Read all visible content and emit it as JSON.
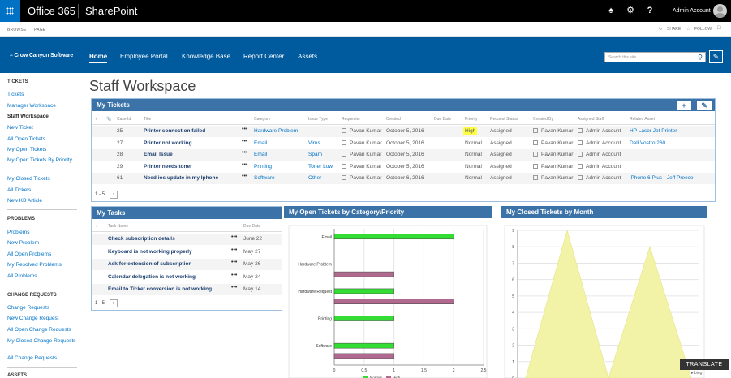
{
  "suite": {
    "office": "Office 365",
    "app": "SharePoint",
    "user": "Admin Account"
  },
  "ribbon": {
    "tabs": [
      "BROWSE",
      "PAGE"
    ],
    "share": "SHARE",
    "follow": "FOLLOW"
  },
  "nav": {
    "logo": "Crow Canyon Software",
    "links": [
      "Home",
      "Employee Portal",
      "Knowledge Base",
      "Report Center",
      "Assets"
    ],
    "search_placeholder": "Search this site"
  },
  "leftnav": {
    "tickets_head": "TICKETS",
    "tickets": [
      "Tickets",
      "Manager Workspace",
      "Staff Workspace",
      "New Ticket",
      "All Open Tickets",
      "My Open Tickets",
      "My Open Tickets By Priority",
      "My Closed Tickets",
      "All Tickets",
      "New KB Article"
    ],
    "problems_head": "PROBLEMS",
    "problems": [
      "Problems",
      "New Problem",
      "All Open Problems",
      "My Resolved Problems",
      "All Problems"
    ],
    "change_head": "CHANGE REQUESTS",
    "change": [
      "Change Requests",
      "New Change Request",
      "All Open Change Requests",
      "My Closed Change Requests",
      "All Change Requests"
    ],
    "assets_head": "ASSETS"
  },
  "page": {
    "title": "Staff Workspace"
  },
  "my_tickets": {
    "title": "My Tickets",
    "columns": [
      "Case Id",
      "Title",
      "Category",
      "Issue Type",
      "Requester",
      "Created",
      "Due Date",
      "Priority",
      "Request Status",
      "Created By",
      "Assigned Staff",
      "Related Asset"
    ],
    "rows": [
      {
        "id": "25",
        "title": "Printer connection failed",
        "category": "Hardware Problem",
        "issue": "",
        "requester": "Pavan Kumar",
        "created": "October 5, 2016",
        "priority": "High",
        "status": "Assigned",
        "created_by": "Pavan Kumar",
        "staff": "Admin Account",
        "asset": "HP Laser Jet Printer"
      },
      {
        "id": "27",
        "title": "Printer not working",
        "category": "Email",
        "issue": "Virus",
        "requester": "Pavan Kumar",
        "created": "October 5, 2016",
        "priority": "Normal",
        "status": "Assigned",
        "created_by": "Pavan Kumar",
        "staff": "Admin Account",
        "asset": "Dell Vostro 260"
      },
      {
        "id": "28",
        "title": "Email Issue",
        "category": "Email",
        "issue": "Spam",
        "requester": "Pavan Kumar",
        "created": "October 5, 2016",
        "priority": "Normal",
        "status": "Assigned",
        "created_by": "Pavan Kumar",
        "staff": "Admin Account",
        "asset": ""
      },
      {
        "id": "29",
        "title": "Printer needs toner",
        "category": "Printing",
        "issue": "Toner Low",
        "requester": "Pavan Kumar",
        "created": "October 5, 2016",
        "priority": "Normal",
        "status": "Assigned",
        "created_by": "Pavan Kumar",
        "staff": "Admin Account",
        "asset": ""
      },
      {
        "id": "61",
        "title": "Need ios update in my Iphone",
        "category": "Software",
        "issue": "Other",
        "requester": "Pavan Kumar",
        "created": "October 6, 2016",
        "priority": "Normal",
        "status": "Assigned",
        "created_by": "Pavan Kumar",
        "staff": "Admin Account",
        "asset": "iPhone 6 Plus - Jeff Preece"
      }
    ],
    "pager": "1 - 5"
  },
  "my_tasks": {
    "title": "My Tasks",
    "columns": [
      "Task Name",
      "Due Date"
    ],
    "rows": [
      {
        "name": "Check subscription details",
        "due": "June 22"
      },
      {
        "name": "Keyboard is not working properly",
        "due": "May 27"
      },
      {
        "name": "Ask for extension of subscription",
        "due": "May 26"
      },
      {
        "name": "Calendar delegation is not working",
        "due": "May 24"
      },
      {
        "name": "Email to Ticket conversion is not working",
        "due": "May 14"
      }
    ],
    "pager": "1 - 5"
  },
  "open_chart": {
    "title": "My Open Tickets by Category/Priority",
    "colors": {
      "Normal": "#33dd33",
      "High": "#b06a8f"
    }
  },
  "closed_chart": {
    "title": "My Closed Tickets by Month",
    "color": "#f3f3a8"
  },
  "chart_data": [
    {
      "type": "bar",
      "orientation": "horizontal",
      "title": "My Open Tickets by Category/Priority",
      "categories": [
        "Email",
        "Hardware Problem",
        "Hardware Request",
        "Printing",
        "Software"
      ],
      "series": [
        {
          "name": "Normal",
          "values": [
            2,
            0,
            1,
            1,
            1
          ]
        },
        {
          "name": "High",
          "values": [
            0,
            1,
            2,
            0,
            1
          ]
        }
      ],
      "xlim": [
        0,
        2.5
      ],
      "xticks": [
        "0",
        "0.5",
        "1",
        "1.5",
        "2",
        "2.5"
      ],
      "legend": "bottom"
    },
    {
      "type": "area",
      "title": "My Closed Tickets by Month",
      "x": [
        0,
        1,
        2,
        3,
        4
      ],
      "values": [
        0,
        9,
        0,
        8,
        0
      ],
      "ylim": [
        0,
        9
      ],
      "yticks": [
        "0",
        "1",
        "2",
        "3",
        "4",
        "5",
        "6",
        "7",
        "8",
        "9"
      ]
    }
  ],
  "translate": {
    "label": "TRANSLATE",
    "by": "bing"
  }
}
